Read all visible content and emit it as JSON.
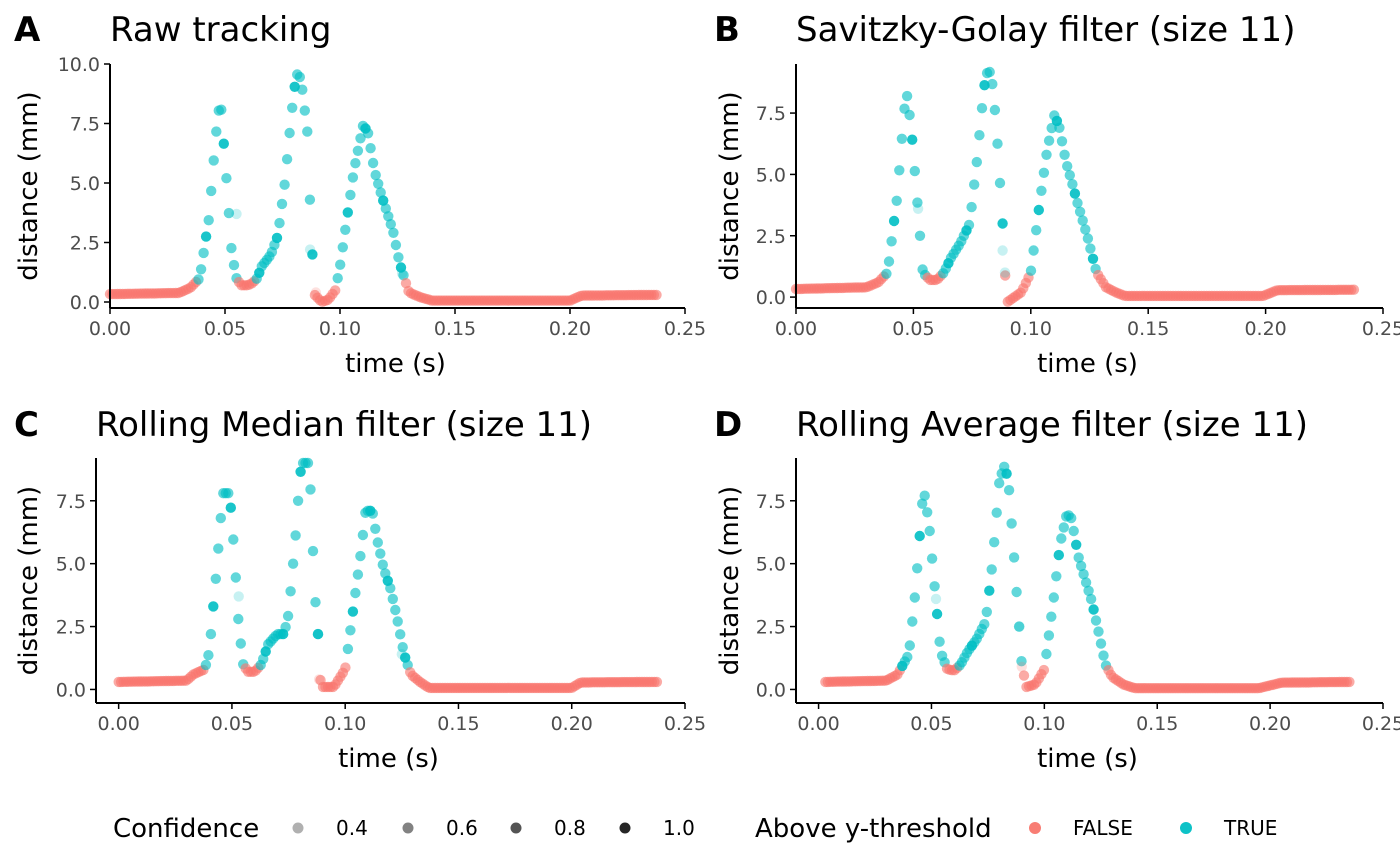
{
  "colors": {
    "false": "#F8766D",
    "true": "#00BFC4",
    "axis": "#000000",
    "tick_text": "#4d4d4d"
  },
  "chart_data": [
    {
      "type": "scatter",
      "tag": "A",
      "title": "Raw tracking",
      "xlabel": "time (s)",
      "ylabel": "distance (mm)",
      "xlim": [
        0,
        0.25
      ],
      "ylim": [
        0,
        10
      ],
      "x_ticks": [
        0,
        0.05,
        0.1,
        0.15,
        0.2,
        0.25
      ],
      "x_tick_labels": [
        "0.00",
        "0.05",
        "0.10",
        "0.15",
        "0.20",
        "0.25"
      ],
      "y_ticks": [
        0,
        2.5,
        5,
        7.5,
        10
      ],
      "y_tick_labels": [
        "0.0",
        "2.5",
        "5.0",
        "7.5",
        "10.0"
      ],
      "curve": [
        [
          0,
          0.33
        ],
        [
          0.03,
          0.38
        ],
        [
          0.035,
          0.6
        ],
        [
          0.039,
          1.0
        ],
        [
          0.043,
          3.5
        ],
        [
          0.046,
          7.0
        ],
        [
          0.048,
          8.6
        ],
        [
          0.05,
          6.0
        ],
        [
          0.053,
          2.0
        ],
        [
          0.055,
          1.0
        ],
        [
          0.057,
          0.7
        ],
        [
          0.06,
          0.7
        ],
        [
          0.062,
          0.8
        ],
        [
          0.064,
          1.0
        ],
        [
          0.066,
          1.5
        ],
        [
          0.07,
          2.0
        ],
        [
          0.073,
          2.8
        ],
        [
          0.076,
          5.0
        ],
        [
          0.079,
          8.0
        ],
        [
          0.081,
          9.6
        ],
        [
          0.083,
          9.4
        ],
        [
          0.086,
          7.0
        ],
        [
          0.087,
          4.0
        ],
        [
          0.088,
          2.0
        ],
        [
          0.089,
          0.3
        ],
        [
          0.092,
          0.0
        ],
        [
          0.095,
          0.1
        ],
        [
          0.098,
          0.5
        ],
        [
          0.1,
          1.5
        ],
        [
          0.103,
          3.5
        ],
        [
          0.106,
          5.5
        ],
        [
          0.11,
          7.4
        ],
        [
          0.112,
          7.2
        ],
        [
          0.115,
          5.5
        ],
        [
          0.118,
          4.5
        ],
        [
          0.12,
          3.9
        ],
        [
          0.123,
          3.0
        ],
        [
          0.126,
          1.6
        ],
        [
          0.13,
          0.4
        ],
        [
          0.135,
          0.2
        ],
        [
          0.14,
          0.06
        ],
        [
          0.2,
          0.06
        ],
        [
          0.205,
          0.27
        ],
        [
          0.238,
          0.3
        ]
      ],
      "low_conf": [
        [
          0.055,
          3.7
        ],
        [
          0.087,
          2.2
        ],
        [
          0.0895,
          0.4
        ],
        [
          0.127,
          1.2
        ]
      ]
    },
    {
      "type": "scatter",
      "tag": "B",
      "title": "Savitzky-Golay filter (size 11)",
      "xlabel": "time (s)",
      "ylabel": "distance (mm)",
      "xlim": [
        0,
        0.25
      ],
      "ylim": [
        -0.2,
        9.5
      ],
      "x_ticks": [
        0,
        0.05,
        0.1,
        0.15,
        0.2,
        0.25
      ],
      "x_tick_labels": [
        "0.00",
        "0.05",
        "0.10",
        "0.15",
        "0.20",
        "0.25"
      ],
      "y_ticks": [
        0,
        2.5,
        5,
        7.5
      ],
      "y_tick_labels": [
        "0.0",
        "2.5",
        "5.0",
        "7.5"
      ],
      "curve": [
        [
          0,
          0.33
        ],
        [
          0.03,
          0.4
        ],
        [
          0.035,
          0.6
        ],
        [
          0.039,
          1.0
        ],
        [
          0.043,
          4.0
        ],
        [
          0.046,
          7.5
        ],
        [
          0.047,
          8.4
        ],
        [
          0.049,
          7.0
        ],
        [
          0.052,
          3.5
        ],
        [
          0.054,
          1.0
        ],
        [
          0.057,
          0.7
        ],
        [
          0.06,
          0.7
        ],
        [
          0.063,
          1.0
        ],
        [
          0.066,
          1.6
        ],
        [
          0.07,
          2.2
        ],
        [
          0.074,
          3.0
        ],
        [
          0.077,
          5.5
        ],
        [
          0.08,
          8.5
        ],
        [
          0.082,
          9.4
        ],
        [
          0.084,
          8.5
        ],
        [
          0.086,
          6.0
        ],
        [
          0.088,
          3.0
        ],
        [
          0.089,
          1.0
        ],
        [
          0.09,
          -0.2
        ],
        [
          0.093,
          0.0
        ],
        [
          0.096,
          0.2
        ],
        [
          0.1,
          1.0
        ],
        [
          0.104,
          4.0
        ],
        [
          0.107,
          6.0
        ],
        [
          0.11,
          7.4
        ],
        [
          0.112,
          7.0
        ],
        [
          0.115,
          5.5
        ],
        [
          0.118,
          4.5
        ],
        [
          0.12,
          3.8
        ],
        [
          0.124,
          2.5
        ],
        [
          0.128,
          1.0
        ],
        [
          0.132,
          0.4
        ],
        [
          0.136,
          0.2
        ],
        [
          0.14,
          0.05
        ],
        [
          0.199,
          0.05
        ],
        [
          0.205,
          0.28
        ],
        [
          0.238,
          0.3
        ]
      ],
      "low_conf": [
        [
          0.052,
          3.6
        ],
        [
          0.088,
          1.9
        ],
        [
          0.089,
          1.0
        ]
      ]
    },
    {
      "type": "scatter",
      "tag": "C",
      "title": "Rolling Median filter (size 11)",
      "xlabel": "time (s)",
      "ylabel": "distance (mm)",
      "xlim": [
        -0.01,
        0.25
      ],
      "ylim": [
        -0.3,
        9.2
      ],
      "x_ticks": [
        0,
        0.05,
        0.1,
        0.15,
        0.2,
        0.25
      ],
      "x_tick_labels": [
        "0.00",
        "0.05",
        "0.10",
        "0.15",
        "0.20",
        "0.25"
      ],
      "y_ticks": [
        0,
        2.5,
        5,
        7.5
      ],
      "y_tick_labels": [
        "0.0",
        "2.5",
        "5.0",
        "7.5"
      ],
      "curve": [
        [
          0,
          0.3
        ],
        [
          0.03,
          0.35
        ],
        [
          0.033,
          0.6
        ],
        [
          0.038,
          0.8
        ],
        [
          0.04,
          1.5
        ],
        [
          0.043,
          4.5
        ],
        [
          0.046,
          7.8
        ],
        [
          0.049,
          7.8
        ],
        [
          0.051,
          5.5
        ],
        [
          0.053,
          2.5
        ],
        [
          0.055,
          1.0
        ],
        [
          0.057,
          0.7
        ],
        [
          0.06,
          0.7
        ],
        [
          0.063,
          1.0
        ],
        [
          0.066,
          1.8
        ],
        [
          0.07,
          2.2
        ],
        [
          0.073,
          2.2
        ],
        [
          0.075,
          3.0
        ],
        [
          0.078,
          6.0
        ],
        [
          0.08,
          8.5
        ],
        [
          0.081,
          9.0
        ],
        [
          0.084,
          9.0
        ],
        [
          0.085,
          7.5
        ],
        [
          0.086,
          5.0
        ],
        [
          0.087,
          3.3
        ],
        [
          0.088,
          2.2
        ],
        [
          0.089,
          0.4
        ],
        [
          0.09,
          0.1
        ],
        [
          0.095,
          0.1
        ],
        [
          0.1,
          0.8
        ],
        [
          0.104,
          3.5
        ],
        [
          0.107,
          5.5
        ],
        [
          0.109,
          7.1
        ],
        [
          0.112,
          7.1
        ],
        [
          0.114,
          6.0
        ],
        [
          0.117,
          4.8
        ],
        [
          0.12,
          4.0
        ],
        [
          0.123,
          2.8
        ],
        [
          0.126,
          1.4
        ],
        [
          0.129,
          0.6
        ],
        [
          0.133,
          0.3
        ],
        [
          0.137,
          0.06
        ],
        [
          0.2,
          0.06
        ],
        [
          0.204,
          0.28
        ],
        [
          0.238,
          0.3
        ]
      ],
      "low_conf": [
        [
          0.053,
          3.7
        ],
        [
          0.088,
          2.2
        ],
        [
          0.0885,
          0.4
        ],
        [
          0.125,
          1.4
        ]
      ]
    },
    {
      "type": "scatter",
      "tag": "D",
      "title": "Rolling Average filter (size 11)",
      "xlabel": "time (s)",
      "ylabel": "distance (mm)",
      "xlim": [
        -0.01,
        0.25
      ],
      "ylim": [
        -0.3,
        9.2
      ],
      "x_ticks": [
        0,
        0.05,
        0.1,
        0.15,
        0.2,
        0.25
      ],
      "x_tick_labels": [
        "0.00",
        "0.05",
        "0.10",
        "0.15",
        "0.20",
        "0.25"
      ],
      "y_ticks": [
        0,
        2.5,
        5,
        7.5
      ],
      "y_tick_labels": [
        "0.0",
        "2.5",
        "5.0",
        "7.5"
      ],
      "curve": [
        [
          0.003,
          0.3
        ],
        [
          0.03,
          0.35
        ],
        [
          0.035,
          0.6
        ],
        [
          0.04,
          1.4
        ],
        [
          0.043,
          4.0
        ],
        [
          0.046,
          7.5
        ],
        [
          0.047,
          7.7
        ],
        [
          0.049,
          6.5
        ],
        [
          0.052,
          3.5
        ],
        [
          0.054,
          1.5
        ],
        [
          0.057,
          0.8
        ],
        [
          0.06,
          0.75
        ],
        [
          0.063,
          1.0
        ],
        [
          0.066,
          1.5
        ],
        [
          0.07,
          2.0
        ],
        [
          0.074,
          2.7
        ],
        [
          0.077,
          5.0
        ],
        [
          0.08,
          8.2
        ],
        [
          0.082,
          8.9
        ],
        [
          0.084,
          8.4
        ],
        [
          0.086,
          6.0
        ],
        [
          0.088,
          3.5
        ],
        [
          0.09,
          1.0
        ],
        [
          0.092,
          0.1
        ],
        [
          0.096,
          0.2
        ],
        [
          0.1,
          0.8
        ],
        [
          0.104,
          3.5
        ],
        [
          0.107,
          5.8
        ],
        [
          0.11,
          7.0
        ],
        [
          0.112,
          6.8
        ],
        [
          0.115,
          5.3
        ],
        [
          0.118,
          4.4
        ],
        [
          0.121,
          3.5
        ],
        [
          0.124,
          2.3
        ],
        [
          0.127,
          1.0
        ],
        [
          0.13,
          0.5
        ],
        [
          0.135,
          0.2
        ],
        [
          0.14,
          0.05
        ],
        [
          0.195,
          0.05
        ],
        [
          0.205,
          0.27
        ],
        [
          0.236,
          0.3
        ]
      ],
      "low_conf": [
        [
          0.052,
          3.6
        ],
        [
          0.089,
          2.5
        ],
        [
          0.09,
          0.9
        ]
      ]
    }
  ],
  "legend": {
    "confidence_title": "Confidence",
    "confidence_levels": [
      {
        "label": "0.4",
        "value": 0.4
      },
      {
        "label": "0.6",
        "value": 0.6
      },
      {
        "label": "0.8",
        "value": 0.8
      },
      {
        "label": "1.0",
        "value": 1.0
      }
    ],
    "threshold_title": "Above y-threshold",
    "threshold_levels": [
      {
        "label": "FALSE",
        "color": "#F8766D"
      },
      {
        "label": "TRUE",
        "color": "#00BFC4"
      }
    ]
  }
}
